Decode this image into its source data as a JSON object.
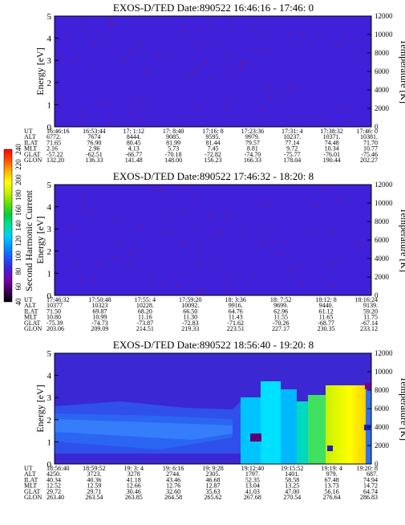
{
  "chart_data": [
    {
      "type": "heatmap",
      "title": "EXOS-D/TED   Date:890522  16:46:16 - 17:46: 0",
      "ylabel": "Energy [eV]",
      "y2label": "Temperature [K]",
      "ylim": [
        0,
        5
      ],
      "y2lim": [
        0,
        12000
      ],
      "yticks": [
        "0",
        "1",
        "2",
        "3",
        "4",
        "5"
      ],
      "y2ticks": [
        "0",
        "2000",
        "4000",
        "6000",
        "8000",
        "10000",
        "12000"
      ],
      "background_level": 0,
      "scatter_marks": "sparse dark red dots",
      "table": {
        "row_labels": [
          "UT",
          "ALT",
          "ILAT",
          "MLT",
          "GLAT",
          "GLON"
        ],
        "columns": [
          [
            "16:46:16",
            "6772.",
            "71.65",
            "2.16",
            "-57.22",
            "132.20"
          ],
          [
            "16:53:44",
            "7674",
            "76.90",
            "2.96",
            "-62.51",
            "136.33"
          ],
          [
            "17: 1:12",
            "8444.",
            "80.45",
            "4.13",
            "-66.77",
            "141.48"
          ],
          [
            "17: 8:40",
            "9085.",
            "81.99",
            "5.73",
            "-70.18",
            "148.00"
          ],
          [
            "17:16: 8",
            "9595.",
            "81.44",
            "7.45",
            "-72.82",
            "156.23"
          ],
          [
            "17:23:36",
            "9979.",
            "79.57",
            "8.81",
            "-74.70",
            "166.33"
          ],
          [
            "17:31: 4",
            "10237.",
            "77.14",
            "9.72",
            "-75.77",
            "178.04"
          ],
          [
            "17:38:32",
            "10371.",
            "74.48",
            "10.34",
            "-76.01",
            "190.44"
          ],
          [
            "17:46: 0",
            "10381.",
            "71.70",
            "10.77",
            "-75.46",
            "202.27"
          ]
        ]
      }
    },
    {
      "type": "heatmap",
      "title": "EXOS-D/TED   Date:890522  17:46:32 - 18:20: 8",
      "ylabel": "Energy [eV]",
      "y2label": "Temperature [K]",
      "ylim": [
        0,
        5
      ],
      "y2lim": [
        0,
        12000
      ],
      "yticks": [
        "0",
        "1",
        "2",
        "3",
        "4",
        "5"
      ],
      "y2ticks": [
        "0",
        "2000",
        "4000",
        "6000",
        "8000",
        "10000",
        "12000"
      ],
      "background_level": 0,
      "scatter_marks": "sparse dark red dots",
      "table": {
        "row_labels": [
          "UT",
          "ALT",
          "ILAT",
          "MLT",
          "GLAT",
          "GLON"
        ],
        "columns": [
          [
            "17:46:32",
            "10377",
            "71.50",
            "10.80",
            "-75.39",
            "203.06"
          ],
          [
            "17:50:48",
            "10323",
            "69.87",
            "10.99",
            "-74.73",
            "209.09"
          ],
          [
            "17:55: 4",
            "10228.",
            "68.20",
            "11.16",
            "-73.87",
            "214.51"
          ],
          [
            "17:59:20",
            "10092.",
            "66.50",
            "11.30",
            "-72.83",
            "219.33"
          ],
          [
            "18: 3:36",
            "9916.",
            "64.76",
            "11.43",
            "-71.62",
            "223.51"
          ],
          [
            "18: 7:52",
            "9699.",
            "62.96",
            "11.55",
            "-70.26",
            "227.17"
          ],
          [
            "18:12: 8",
            "9440.",
            "61.12",
            "11.65",
            "-68.77",
            "230.35"
          ],
          [
            "18:16:24",
            "9139.",
            "59.20",
            "11.75",
            "-67.14",
            "233.12"
          ]
        ]
      }
    },
    {
      "type": "heatmap",
      "title": "EXOS-D/TED   Date:890522  18:56:40 - 19:20: 8",
      "ylabel": "Energy [eV]",
      "y2label": "Temperature [K]",
      "ylim": [
        0,
        5
      ],
      "y2lim": [
        0,
        12000
      ],
      "yticks": [
        "0",
        "1",
        "2",
        "3",
        "4",
        "5"
      ],
      "y2ticks": [
        "0",
        "2000",
        "4000",
        "6000",
        "8000",
        "10000",
        "12000"
      ],
      "background_level": 40,
      "table": {
        "row_labels": [
          "UT",
          "ALT",
          "ILAT",
          "MLT",
          "GLAT",
          "GLON"
        ],
        "columns": [
          [
            "18:56:40",
            "4250.",
            "40.34",
            "12.52",
            "29.72",
            "263.40"
          ],
          [
            "18:59:52",
            "3723.",
            "40.36",
            "12.59",
            "29.71",
            "263.54"
          ],
          [
            "19: 3: 4",
            "3278",
            "41.18",
            "12.66",
            "30.46",
            "263.85"
          ],
          [
            "19: 6:16",
            "2744.",
            "43.46",
            "12.76",
            "32.60",
            "264.58"
          ],
          [
            "19: 9:28",
            "2305.",
            "46.68",
            "12.87",
            "35.63",
            "265.62"
          ],
          [
            "19:12:40",
            "1797.",
            "52.35",
            "13.04",
            "41.03",
            "267.68"
          ],
          [
            "19:15:52",
            "1401.",
            "58.58",
            "13.25",
            "47.00",
            "270.54"
          ],
          [
            "19:19: 4",
            "979.",
            "67.48",
            "13.73",
            "56.16",
            "276.64"
          ],
          [
            "19:20: 8",
            "687.",
            "74.94",
            "14.72",
            "64.74",
            "286.83"
          ]
        ]
      }
    }
  ],
  "colorbar": {
    "label": "Second Harmonic Current",
    "ticks": [
      "40",
      "60",
      "80",
      "100",
      "120",
      "140",
      "160",
      "180",
      "200",
      "220",
      "240"
    ],
    "range": [
      40,
      240
    ],
    "stops": [
      "#000000",
      "#3a0058",
      "#7a00a8",
      "#4020d8",
      "#2050ff",
      "#0090ff",
      "#00d0ff",
      "#00e0a0",
      "#00d040",
      "#60e000",
      "#c8f000",
      "#ffff00",
      "#ffb000",
      "#ff5000",
      "#ff0000"
    ]
  }
}
